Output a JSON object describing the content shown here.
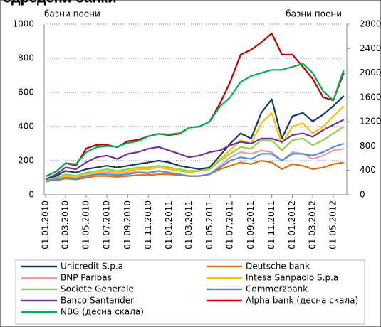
{
  "chart_data": {
    "type": "line",
    "title": "одредени банки",
    "y_label": "базни поени",
    "y2_label": "базни поени",
    "x": [
      "01.01.2010",
      "01.02.2010",
      "01.03.2010",
      "01.04.2010",
      "01.05.2010",
      "01.06.2010",
      "01.07.2010",
      "01.08.2010",
      "01.09.2010",
      "01.10.2010",
      "01.11.2010",
      "01.12.2010",
      "01.01.2011",
      "01.02.2011",
      "01.03.2011",
      "01.04.2011",
      "01.05.2011",
      "01.06.2011",
      "01.07.2011",
      "01.08.2011",
      "01.09.2011",
      "01.10.2011",
      "01.11.2011",
      "01.12.2011",
      "01.01.2012",
      "01.02.2012",
      "01.03.2012",
      "01.04.2012",
      "01.05.2012",
      "01.06.2012"
    ],
    "xlim": [
      "01.01.2010",
      "10.06.2012"
    ],
    "xticks": [
      "01.01.2010",
      "01.03.2010",
      "01.05.2010",
      "01.07.2010",
      "01.09.2010",
      "01.11.2010",
      "01.01.2011",
      "01.03.2011",
      "01.05.2011",
      "01.07.2011",
      "01.09.2011",
      "01.11.2011",
      "01.01.2012",
      "01.03.2012",
      "01.05.2012"
    ],
    "ylim": [
      0,
      1000
    ],
    "yticks": [
      0,
      200,
      400,
      600,
      800,
      1000
    ],
    "y2lim": [
      0,
      2800
    ],
    "y2ticks": [
      0,
      400,
      800,
      1200,
      1600,
      2000,
      2400,
      2800
    ],
    "grid": true,
    "legend": "bottom",
    "series": [
      {
        "name": "Unicredit S.p.a",
        "color": "#17375e",
        "values": [
          90,
          110,
          140,
          130,
          150,
          160,
          170,
          160,
          170,
          180,
          190,
          200,
          190,
          170,
          160,
          150,
          160,
          230,
          300,
          360,
          330,
          480,
          560,
          330,
          460,
          480,
          430,
          470,
          520,
          580
        ]
      },
      {
        "name": "Deutsche bank",
        "color": "#e46c0a",
        "values": [
          80,
          85,
          95,
          90,
          100,
          110,
          110,
          105,
          110,
          115,
          115,
          120,
          120,
          115,
          110,
          110,
          120,
          150,
          170,
          190,
          180,
          200,
          190,
          150,
          180,
          170,
          150,
          160,
          180,
          190
        ]
      },
      {
        "name": "BNP Paribas",
        "color": "#e6a0a0",
        "values": [
          75,
          90,
          100,
          95,
          110,
          120,
          130,
          125,
          130,
          135,
          130,
          140,
          130,
          120,
          110,
          110,
          120,
          170,
          220,
          250,
          240,
          260,
          250,
          200,
          250,
          240,
          210,
          230,
          260,
          270
        ]
      },
      {
        "name": "Intesa Sanpaolo S.p.a",
        "color": "#ffc000",
        "values": [
          80,
          95,
          110,
          100,
          120,
          130,
          140,
          130,
          140,
          150,
          150,
          160,
          150,
          140,
          130,
          140,
          150,
          210,
          260,
          320,
          300,
          420,
          480,
          300,
          400,
          420,
          360,
          400,
          460,
          520
        ]
      },
      {
        "name": "Societe Generale",
        "color": "#92d050",
        "values": [
          85,
          100,
          120,
          110,
          130,
          140,
          150,
          140,
          150,
          160,
          160,
          170,
          160,
          150,
          140,
          140,
          150,
          200,
          240,
          280,
          270,
          320,
          320,
          260,
          320,
          330,
          290,
          320,
          360,
          400
        ]
      },
      {
        "name": "Commerzbank",
        "color": "#558ed5",
        "values": [
          80,
          90,
          100,
          95,
          110,
          120,
          120,
          115,
          120,
          130,
          125,
          140,
          130,
          120,
          110,
          110,
          120,
          160,
          200,
          220,
          210,
          240,
          240,
          200,
          240,
          240,
          230,
          250,
          280,
          300
        ]
      },
      {
        "name": "Banco Santander",
        "color": "#7030a0",
        "values": [
          90,
          120,
          160,
          150,
          190,
          220,
          230,
          210,
          240,
          250,
          270,
          280,
          260,
          240,
          220,
          230,
          250,
          260,
          290,
          310,
          300,
          330,
          330,
          310,
          350,
          360,
          340,
          380,
          410,
          440
        ]
      },
      {
        "name": "Alpha bank (десна скала)",
        "color": "#c00000",
        "axis": "y2",
        "values": [
          300,
          380,
          520,
          480,
          760,
          820,
          820,
          780,
          880,
          900,
          960,
          1000,
          980,
          1000,
          1100,
          1120,
          1200,
          1500,
          1850,
          2300,
          2380,
          2500,
          2650,
          2300,
          2300,
          2100,
          1900,
          1600,
          1550,
          2000
        ]
      },
      {
        "name": "NBG (десна скала)",
        "color": "#00b050",
        "axis": "y2",
        "values": [
          300,
          380,
          520,
          500,
          700,
          780,
          800,
          790,
          850,
          880,
          960,
          1000,
          990,
          1010,
          1100,
          1120,
          1200,
          1450,
          1600,
          1850,
          1950,
          2000,
          2050,
          2050,
          2100,
          2150,
          2000,
          1700,
          1550,
          2050
        ]
      }
    ]
  }
}
